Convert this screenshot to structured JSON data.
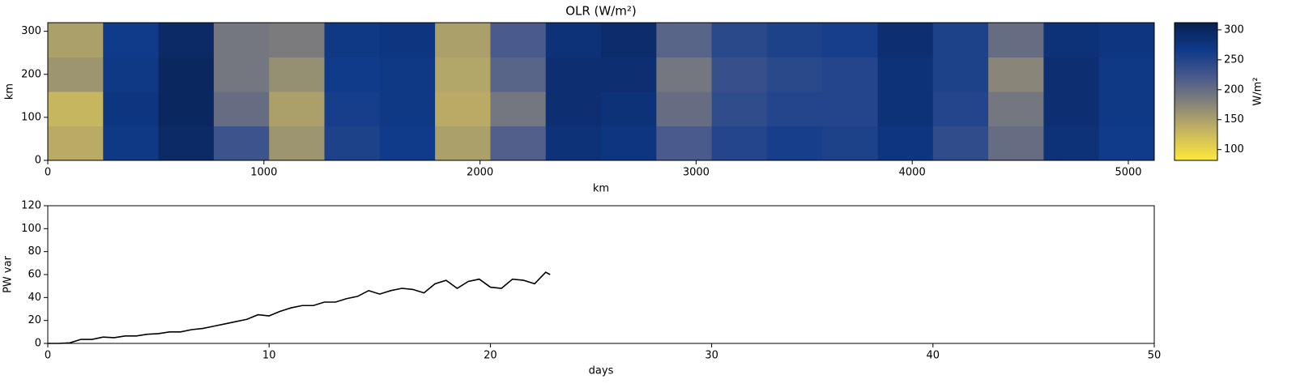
{
  "chart_data": [
    {
      "type": "heatmap",
      "title": "OLR (W/m²)",
      "x_label": "km",
      "y_label": "km",
      "xlim": [
        0,
        5120
      ],
      "ylim": [
        0,
        320
      ],
      "xticks": [
        0,
        1000,
        2000,
        3000,
        4000,
        5000
      ],
      "yticks": [
        0,
        100,
        200,
        300
      ],
      "values": [
        [
          140,
          270,
          295,
          230,
          160,
          255,
          265,
          150,
          215,
          280,
          275,
          220,
          250,
          260,
          255,
          275,
          240,
          200,
          280,
          265
        ],
        [
          130,
          275,
          300,
          200,
          150,
          260,
          270,
          140,
          190,
          285,
          280,
          200,
          240,
          250,
          250,
          280,
          250,
          190,
          285,
          270
        ],
        [
          160,
          270,
          300,
          190,
          165,
          265,
          270,
          145,
          210,
          285,
          285,
          190,
          235,
          245,
          250,
          280,
          255,
          175,
          285,
          270
        ],
        [
          150,
          265,
          295,
          190,
          185,
          270,
          275,
          150,
          220,
          280,
          290,
          210,
          245,
          255,
          260,
          285,
          255,
          200,
          280,
          275
        ]
      ],
      "colorbar": {
        "label": "W/m²",
        "lim": [
          82,
          312
        ],
        "ticks": [
          100,
          150,
          200,
          250,
          300
        ],
        "colormap": [
          "#fde93a",
          "#c9b85e",
          "#8a8678",
          "#4a5a8c",
          "#0f3a8a",
          "#0a2050"
        ]
      }
    },
    {
      "type": "line",
      "x_label": "days",
      "y_label": "PW var",
      "xlim": [
        0,
        50
      ],
      "ylim": [
        0,
        120
      ],
      "xticks": [
        0,
        10,
        20,
        30,
        40,
        50
      ],
      "yticks": [
        0,
        20,
        40,
        60,
        80,
        100,
        120
      ],
      "x": [
        0,
        0.5,
        1,
        1.5,
        2,
        2.5,
        3,
        3.5,
        4,
        4.5,
        5,
        5.5,
        6,
        6.5,
        7,
        7.5,
        8,
        8.5,
        9,
        9.5,
        10,
        10.5,
        11,
        11.5,
        12,
        12.5,
        13,
        13.5,
        14,
        14.5,
        15,
        15.5,
        16,
        16.5,
        17,
        17.5,
        18,
        18.5,
        19,
        19.5,
        20,
        20.5,
        21,
        21.5,
        22,
        22.5,
        22.7
      ],
      "values": [
        0,
        0,
        0.5,
        3.5,
        3.5,
        5.5,
        5,
        6.5,
        6.5,
        8,
        8.5,
        10,
        10,
        12,
        13,
        15,
        17,
        19,
        21,
        25,
        24,
        28,
        31,
        33,
        33,
        36,
        36,
        39,
        41,
        46,
        43,
        46,
        48,
        47,
        44,
        52,
        55,
        48,
        54,
        56,
        49,
        48,
        56,
        55,
        52,
        62,
        60
      ],
      "color": "#000000"
    }
  ]
}
